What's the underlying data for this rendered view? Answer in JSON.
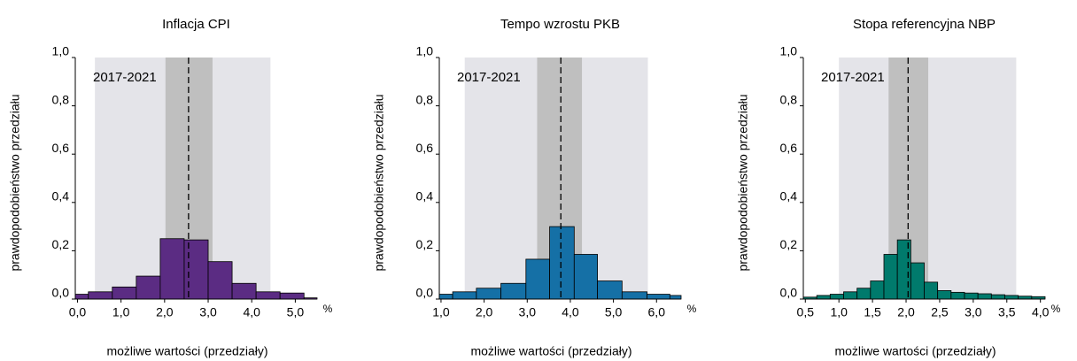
{
  "chart_data": [
    {
      "type": "histogram",
      "title": "Inflacja CPI",
      "xlabel": "możliwe wartości (przedziały)",
      "ylabel": "prawdopodobieństwo przedziału",
      "unit": "%",
      "annotation": "2017-2021",
      "color": "#5b2c83",
      "bins": [
        -0.05,
        0.25,
        0.8,
        1.35,
        1.9,
        2.45,
        3.0,
        3.55,
        4.1,
        4.65,
        5.2,
        5.5
      ],
      "values": [
        0.02,
        0.03,
        0.05,
        0.095,
        0.25,
        0.245,
        0.155,
        0.065,
        0.03,
        0.025,
        0.005
      ],
      "light_band": [
        0.4,
        4.43
      ],
      "dark_band": [
        2.02,
        3.1
      ],
      "reference_line": 2.55,
      "xlim": [
        -0.05,
        5.5
      ],
      "ylim": [
        0,
        1
      ],
      "xticks": [
        {
          "value": 0,
          "label": "0,0"
        },
        {
          "value": 1,
          "label": "1,0"
        },
        {
          "value": 2,
          "label": "2,0"
        },
        {
          "value": 3,
          "label": "3,0"
        },
        {
          "value": 4,
          "label": "4,0"
        },
        {
          "value": 5,
          "label": "5,0"
        }
      ],
      "yticks": [
        {
          "value": 0,
          "label": "0,0"
        },
        {
          "value": 0.2,
          "label": "0,2"
        },
        {
          "value": 0.4,
          "label": "0,4"
        },
        {
          "value": 0.6,
          "label": "0,6"
        },
        {
          "value": 0.8,
          "label": "0,8"
        },
        {
          "value": 1,
          "label": "1,0"
        }
      ]
    },
    {
      "type": "histogram",
      "title": "Tempo wzrostu PKB",
      "xlabel": "możliwe wartości (przedziały)",
      "ylabel": "prawdopodobieństwo przedziału",
      "unit": "%",
      "annotation": "2017-2021",
      "color": "#1570a6",
      "bins": [
        0.96,
        1.27,
        1.82,
        2.39,
        2.97,
        3.52,
        4.09,
        4.63,
        5.2,
        5.78,
        6.31,
        6.57
      ],
      "values": [
        0.02,
        0.03,
        0.045,
        0.065,
        0.165,
        0.3,
        0.185,
        0.075,
        0.03,
        0.02,
        0.015
      ],
      "light_band": [
        1.55,
        5.8
      ],
      "dark_band": [
        3.23,
        4.27
      ],
      "reference_line": 3.78,
      "xlim": [
        0.96,
        6.57
      ],
      "ylim": [
        0,
        1
      ],
      "xticks": [
        {
          "value": 1,
          "label": "1,0"
        },
        {
          "value": 2,
          "label": "2,0"
        },
        {
          "value": 3,
          "label": "3,0"
        },
        {
          "value": 4,
          "label": "4,0"
        },
        {
          "value": 5,
          "label": "5,0"
        },
        {
          "value": 6,
          "label": "6,0"
        }
      ],
      "yticks": [
        {
          "value": 0,
          "label": "0,0"
        },
        {
          "value": 0.2,
          "label": "0,2"
        },
        {
          "value": 0.4,
          "label": "0,4"
        },
        {
          "value": 0.6,
          "label": "0,6"
        },
        {
          "value": 0.8,
          "label": "0,8"
        },
        {
          "value": 1,
          "label": "1,0"
        }
      ]
    },
    {
      "type": "histogram",
      "title": "Stopa referencyjna NBP",
      "xlabel": "możliwe wartości (przedziały)",
      "ylabel": "prawdopodobieństwo przedziału",
      "unit": "%",
      "annotation": "2017-2021",
      "color": "#007a6c",
      "bins": [
        0.47,
        0.67,
        0.87,
        1.07,
        1.27,
        1.47,
        1.67,
        1.87,
        2.07,
        2.27,
        2.47,
        2.67,
        2.87,
        3.07,
        3.27,
        3.47,
        3.67,
        3.87,
        4.07
      ],
      "values": [
        0.008,
        0.015,
        0.02,
        0.03,
        0.045,
        0.075,
        0.185,
        0.245,
        0.15,
        0.07,
        0.035,
        0.028,
        0.025,
        0.022,
        0.018,
        0.015,
        0.012,
        0.01
      ],
      "light_band": [
        1.0,
        3.64
      ],
      "dark_band": [
        1.74,
        2.33
      ],
      "reference_line": 2.03,
      "xlim": [
        0.47,
        4.07
      ],
      "ylim": [
        0,
        1
      ],
      "xticks": [
        {
          "value": 0.5,
          "label": "0,5"
        },
        {
          "value": 1,
          "label": "1,0"
        },
        {
          "value": 1.5,
          "label": "1,5"
        },
        {
          "value": 2,
          "label": "2,0"
        },
        {
          "value": 2.5,
          "label": "2,5"
        },
        {
          "value": 3,
          "label": "3,0"
        },
        {
          "value": 3.5,
          "label": "3,5"
        },
        {
          "value": 4,
          "label": "4,0"
        }
      ],
      "yticks": [
        {
          "value": 0,
          "label": "0,0"
        },
        {
          "value": 0.2,
          "label": "0,2"
        },
        {
          "value": 0.4,
          "label": "0,4"
        },
        {
          "value": 0.6,
          "label": "0,6"
        },
        {
          "value": 0.8,
          "label": "0,8"
        },
        {
          "value": 1,
          "label": "1,0"
        }
      ]
    }
  ]
}
